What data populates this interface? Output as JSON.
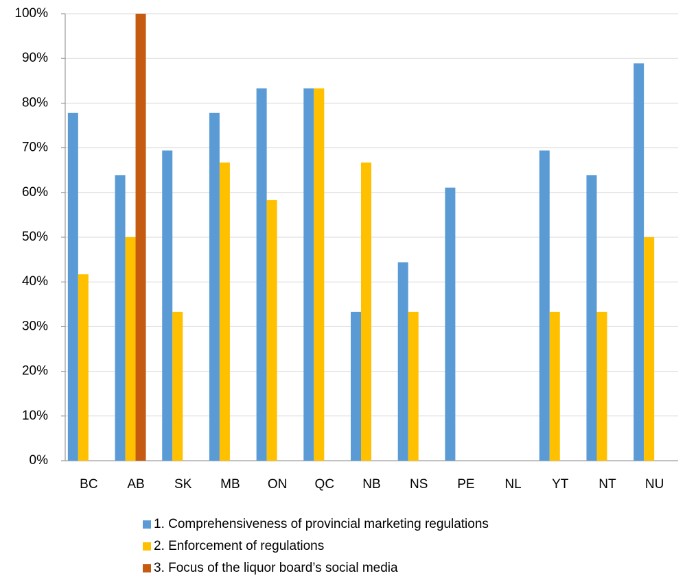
{
  "chart_data": {
    "type": "bar",
    "categories": [
      "BC",
      "AB",
      "SK",
      "MB",
      "ON",
      "QC",
      "NB",
      "NS",
      "PE",
      "NL",
      "YT",
      "NT",
      "NU"
    ],
    "series": [
      {
        "name": "1. Comprehensiveness of provincial marketing regulations",
        "color": "#5b9bd5",
        "values": [
          77.8,
          63.9,
          69.4,
          77.8,
          83.3,
          83.3,
          33.3,
          44.4,
          61.1,
          null,
          69.4,
          63.9,
          88.9
        ]
      },
      {
        "name": "2. Enforcement of regulations",
        "color": "#ffc000",
        "values": [
          41.7,
          50,
          33.3,
          66.7,
          58.3,
          83.3,
          66.7,
          33.3,
          null,
          null,
          33.3,
          33.3,
          50
        ]
      },
      {
        "name": "3. Focus of the liquor board’s social media",
        "color": "#c55a11",
        "values": [
          null,
          100,
          null,
          null,
          null,
          null,
          null,
          null,
          null,
          null,
          null,
          null,
          null
        ]
      }
    ],
    "ylim": [
      0,
      100
    ],
    "yticks": [
      {
        "value": 0,
        "label": "0%"
      },
      {
        "value": 10,
        "label": "10%"
      },
      {
        "value": 20,
        "label": "20%"
      },
      {
        "value": 30,
        "label": "30%"
      },
      {
        "value": 40,
        "label": "40%"
      },
      {
        "value": 50,
        "label": "50%"
      },
      {
        "value": 60,
        "label": "60%"
      },
      {
        "value": 70,
        "label": "70%"
      },
      {
        "value": 80,
        "label": "80%"
      },
      {
        "value": 90,
        "label": "90%"
      },
      {
        "value": 100,
        "label": "100%"
      }
    ],
    "grid": true,
    "legend": "bottom"
  }
}
